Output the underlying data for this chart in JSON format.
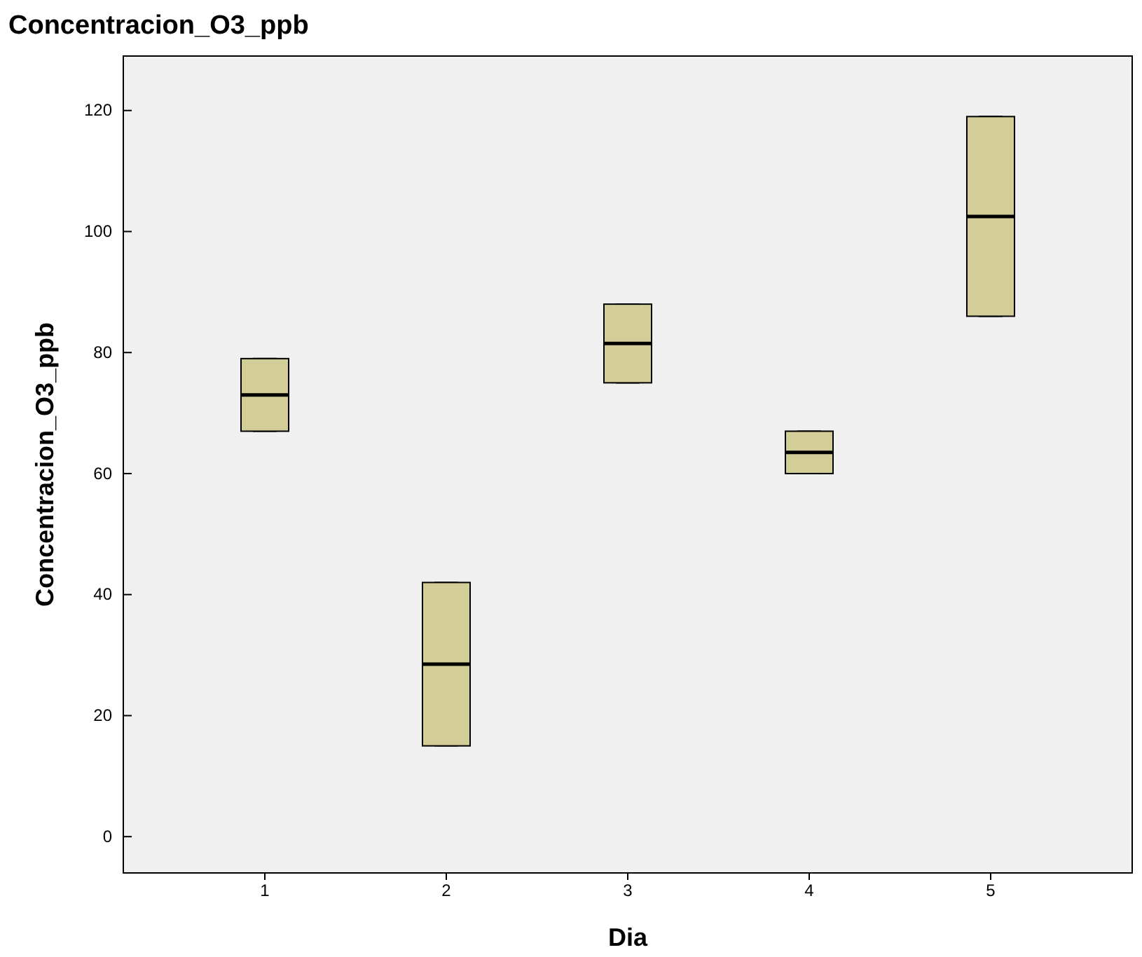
{
  "chart_data": {
    "type": "box",
    "title": "Concentracion_O3_ppb",
    "xlabel": "Dia",
    "ylabel": "Concentracion_O3_ppb",
    "categories": [
      "1",
      "2",
      "3",
      "4",
      "5"
    ],
    "boxes": [
      {
        "low": 67,
        "q1": 67,
        "median": 73,
        "q3": 79,
        "high": 79
      },
      {
        "low": 15,
        "q1": 15,
        "median": 28.5,
        "q3": 42,
        "high": 42
      },
      {
        "low": 75,
        "q1": 75,
        "median": 81.5,
        "q3": 88,
        "high": 88
      },
      {
        "low": 60,
        "q1": 60,
        "median": 63.5,
        "q3": 67,
        "high": 67
      },
      {
        "low": 86,
        "q1": 86,
        "median": 102.5,
        "q3": 119,
        "high": 119
      }
    ],
    "color": "#d3ce97",
    "ylim": [
      -6,
      129
    ],
    "yticks": [
      0,
      20,
      40,
      60,
      80,
      100,
      120
    ],
    "grid": false
  }
}
